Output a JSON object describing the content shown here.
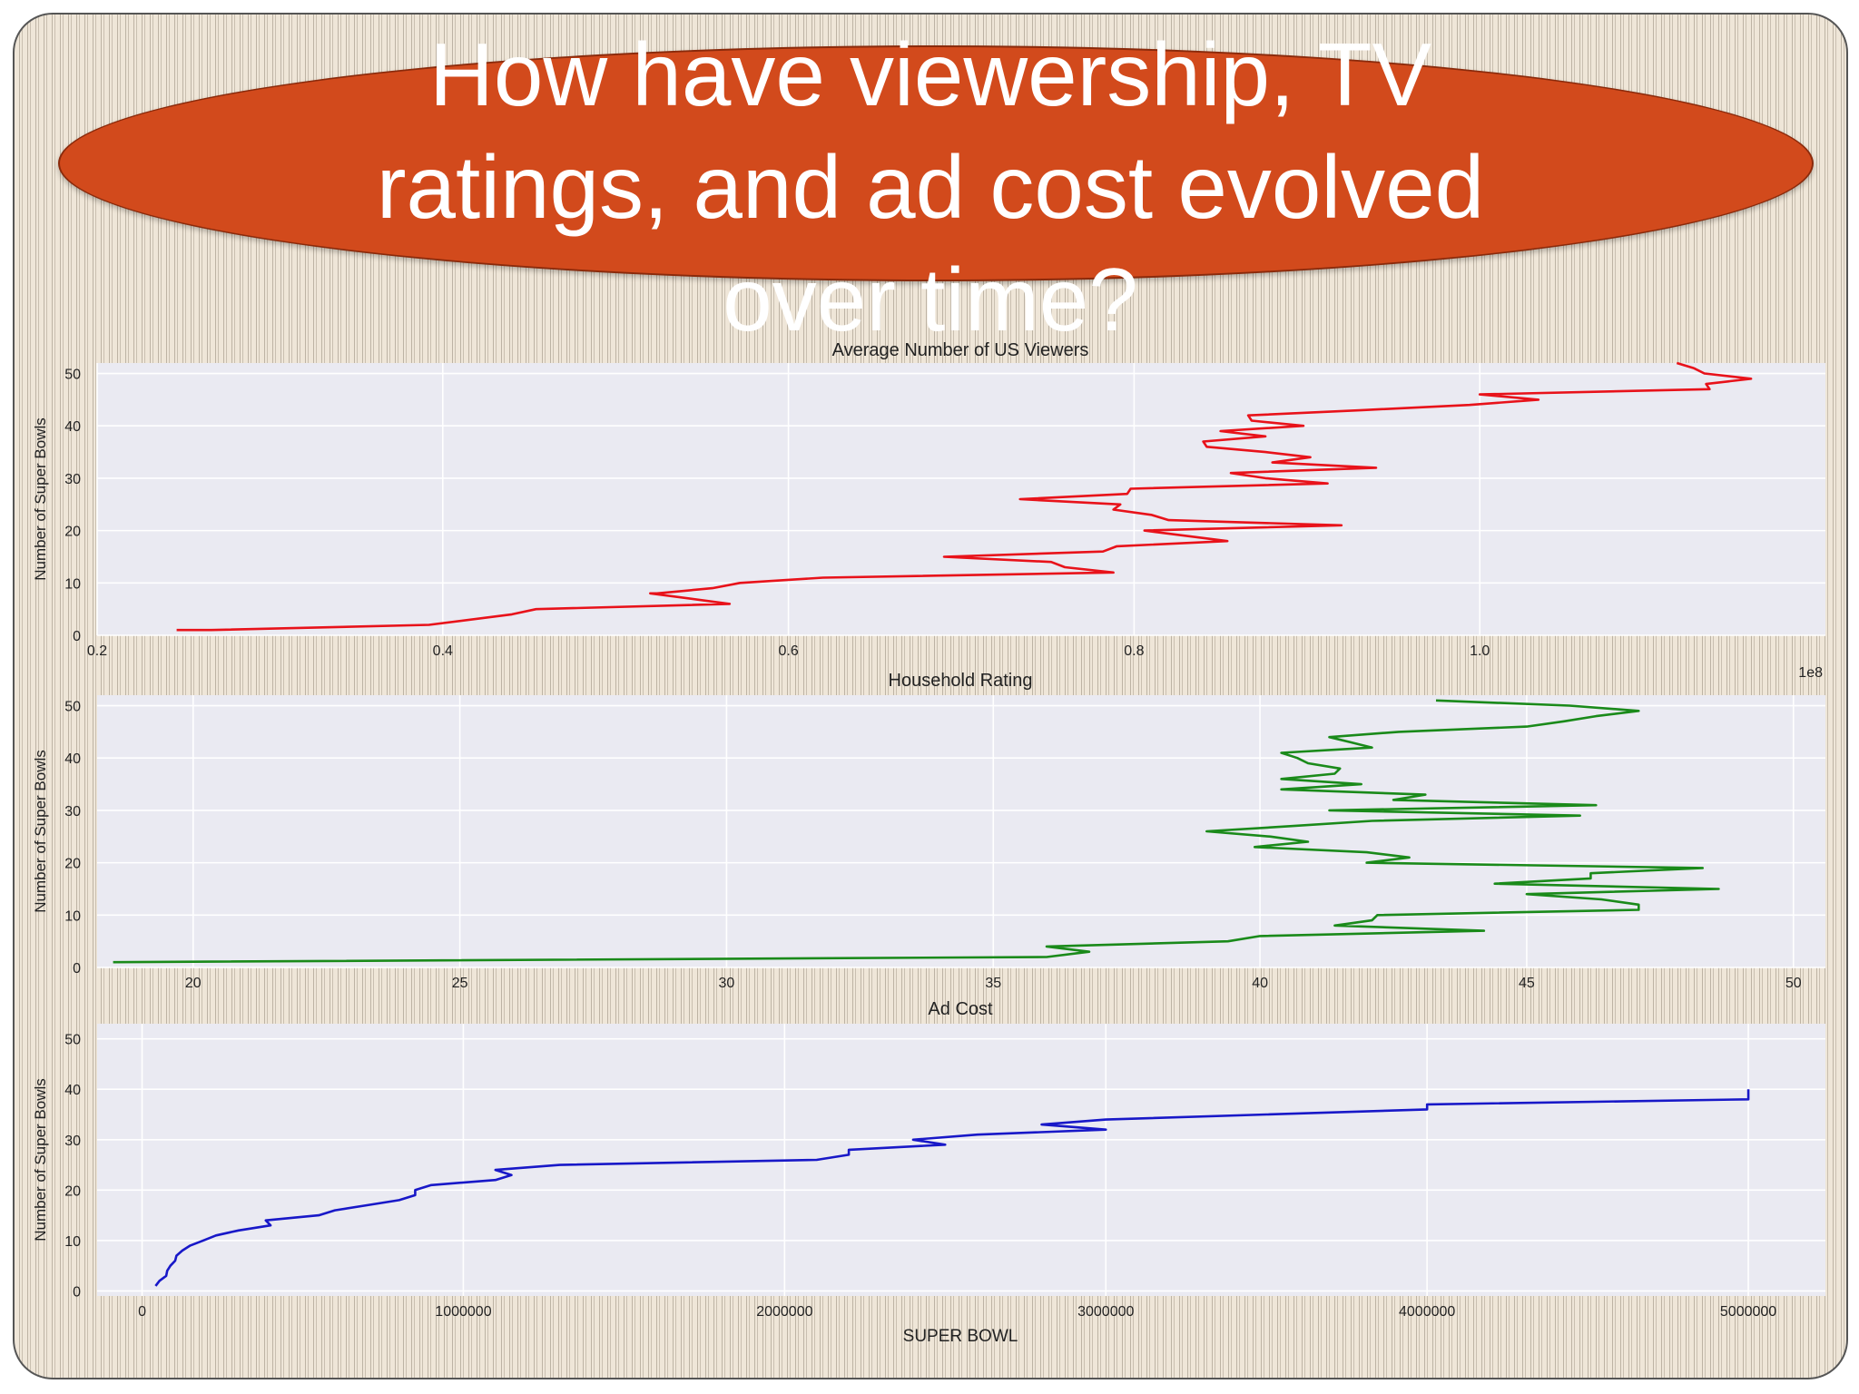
{
  "slide": {
    "title_lines": [
      "How have viewership, TV",
      "ratings, and ad cost evolved",
      "over time?"
    ]
  },
  "chart_data": [
    {
      "type": "line",
      "title": "Average Number of US Viewers",
      "xlabel": "",
      "ylabel": "Number of Super Bowls",
      "xlim": [
        0.2,
        1.2
      ],
      "ylim": [
        0,
        52
      ],
      "xticks": [
        "0.2",
        "0.4",
        "0.6",
        "0.8",
        "1.0"
      ],
      "xtick_values": [
        0.2,
        0.4,
        0.6,
        0.8,
        1.0
      ],
      "yticks": [
        "0",
        "10",
        "20",
        "30",
        "40",
        "50"
      ],
      "ytick_values": [
        0,
        10,
        20,
        30,
        40,
        50
      ],
      "offset_label": "1e8",
      "color": "#e8121a",
      "grid": true,
      "series": [
        {
          "x": [
            0.246,
            0.266,
            0.392,
            0.44,
            0.454,
            0.566,
            0.52,
            0.524,
            0.556,
            0.572,
            0.62,
            0.788,
            0.76,
            0.752,
            0.69,
            0.782,
            0.79,
            0.854,
            0.806,
            0.92,
            0.82,
            0.81,
            0.788,
            0.792,
            0.734,
            0.796,
            0.798,
            0.912,
            0.876,
            0.856,
            0.94,
            0.88,
            0.902,
            0.876,
            0.842,
            0.84,
            0.876,
            0.85,
            0.898,
            0.868,
            0.866,
            0.932,
            0.994,
            1.034,
            1.0,
            1.133,
            1.131,
            1.157,
            1.13,
            1.124,
            1.114
          ],
          "y": [
            1,
            1,
            2,
            4,
            5,
            6,
            8,
            8,
            9,
            10,
            11,
            12,
            13,
            14,
            15,
            16,
            17,
            18,
            20,
            21,
            22,
            23,
            24,
            25,
            26,
            27,
            28,
            29,
            30,
            31,
            32,
            33,
            34,
            35,
            36,
            37,
            38,
            39,
            40,
            41,
            42,
            43,
            44,
            45,
            46,
            47,
            48,
            49,
            50,
            51,
            52
          ]
        }
      ]
    },
    {
      "type": "line",
      "title": "Household Rating",
      "xlabel": "",
      "ylabel": "Number of Super Bowls",
      "xlim": [
        18.2,
        50.6
      ],
      "ylim": [
        0,
        52
      ],
      "xticks": [
        "20",
        "25",
        "30",
        "35",
        "40",
        "45",
        "50"
      ],
      "xtick_values": [
        20,
        25,
        30,
        35,
        40,
        45,
        50
      ],
      "yticks": [
        "0",
        "10",
        "20",
        "30",
        "40",
        "50"
      ],
      "ytick_values": [
        0,
        10,
        20,
        30,
        40,
        50
      ],
      "color": "#1a8a1a",
      "grid": true,
      "series": [
        {
          "x": [
            18.5,
            36.0,
            36.8,
            36.0,
            39.4,
            40.0,
            44.2,
            41.4,
            42.1,
            42.2,
            47.1,
            47.1,
            46.4,
            45.0,
            48.6,
            44.4,
            46.2,
            46.2,
            48.3,
            42.0,
            42.8,
            42.0,
            39.9,
            40.9,
            40.2,
            39.0,
            40.6,
            42.1,
            46.0,
            41.3,
            46.3,
            42.5,
            43.1,
            40.4,
            41.9,
            40.4,
            41.4,
            41.5,
            40.9,
            40.7,
            40.4,
            42.1,
            41.7,
            41.3,
            42.6,
            45.0,
            45.7,
            46.3,
            47.1,
            45.8,
            43.3
          ],
          "y": [
            1,
            2,
            3,
            4,
            5,
            6,
            7,
            8,
            9,
            10,
            11,
            12,
            13,
            14,
            15,
            16,
            17,
            18,
            19,
            20,
            21,
            22,
            23,
            24,
            25,
            26,
            27,
            28,
            29,
            30,
            31,
            32,
            33,
            34,
            35,
            36,
            37,
            38,
            39,
            40,
            41,
            42,
            43,
            44,
            45,
            46,
            47,
            48,
            49,
            50,
            51
          ]
        }
      ]
    },
    {
      "type": "line",
      "title": "Ad Cost",
      "xlabel": "SUPER BOWL",
      "ylabel": "Number of Super Bowls",
      "xlim": [
        -140000,
        5240000
      ],
      "ylim": [
        -1,
        53
      ],
      "xticks": [
        "0",
        "1000000",
        "2000000",
        "3000000",
        "4000000",
        "5000000"
      ],
      "xtick_values": [
        0,
        1000000,
        2000000,
        3000000,
        4000000,
        5000000
      ],
      "yticks": [
        "0",
        "10",
        "20",
        "30",
        "40",
        "50"
      ],
      "ytick_values": [
        0,
        10,
        20,
        30,
        40,
        50
      ],
      "color": "#1818c8",
      "grid": true,
      "series": [
        {
          "x": [
            42000,
            54000,
            75000,
            78000,
            88000,
            103000,
            107000,
            125000,
            150000,
            190000,
            230000,
            300000,
            400000,
            385000,
            550000,
            600000,
            700000,
            800000,
            850000,
            850000,
            900000,
            1100000,
            1150000,
            1100000,
            1300000,
            2100000,
            2200000,
            2200000,
            2500000,
            2400000,
            2600000,
            3000000,
            2800000,
            3000000,
            3500000,
            4000000,
            4000000,
            5000000,
            5000000,
            5000000
          ],
          "y": [
            1,
            2,
            3,
            4,
            5,
            6,
            7,
            8,
            9,
            10,
            11,
            12,
            13,
            14,
            15,
            16,
            17,
            18,
            19,
            20,
            21,
            22,
            23,
            24,
            25,
            26,
            27,
            28,
            29,
            30,
            31,
            32,
            33,
            34,
            35,
            36,
            37,
            38,
            39,
            40
          ]
        }
      ]
    }
  ]
}
